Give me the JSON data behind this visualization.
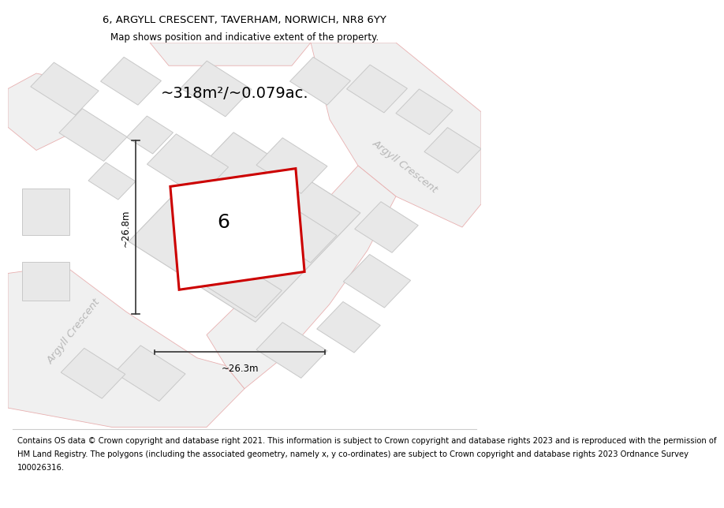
{
  "title_line1": "6, ARGYLL CRESCENT, TAVERHAM, NORWICH, NR8 6YY",
  "title_line2": "Map shows position and indicative extent of the property.",
  "area_text": "~318m²/~0.079ac.",
  "label_number": "6",
  "dim_height": "~26.8m",
  "dim_width": "~26.3m",
  "footer_lines": [
    "Contains OS data © Crown copyright and database right 2021. This information is subject to Crown copyright and database rights 2023 and is reproduced with the permission of",
    "HM Land Registry. The polygons (including the associated geometry, namely x, y co-ordinates) are subject to Crown copyright and database rights 2023 Ordnance Survey",
    "100026316."
  ],
  "map_bg": "#ffffff",
  "plot_fill": "#ffffff",
  "plot_edge": "#cc0000",
  "road_fill": "#f0f0f0",
  "road_outline": "#e8b0b0",
  "building_fill": "#e8e8e8",
  "building_edge": "#c8c8c8",
  "road_label_color": "#b8b8b8",
  "dim_line_color": "#333333",
  "title_fontsize": 9.5,
  "subtitle_fontsize": 8.5,
  "area_fontsize": 14,
  "label_fontsize": 18,
  "dim_fontsize": 8.5,
  "footer_fontsize": 7.2,
  "road_label_fontsize": 9.5
}
